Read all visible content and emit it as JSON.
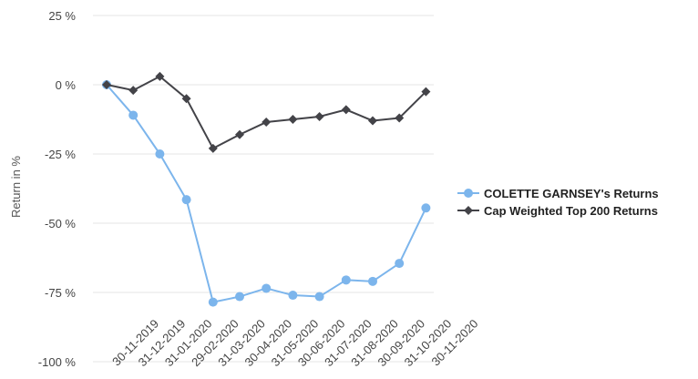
{
  "chart_data": {
    "type": "line",
    "ylabel": "Return in %",
    "xlabel": "",
    "title": "",
    "ylim": [
      -100,
      25
    ],
    "yticks": [
      25,
      0,
      -25,
      -50,
      -75,
      -100
    ],
    "ytick_labels": [
      "25 %",
      "0 %",
      "-25 %",
      "-50 %",
      "-75 %",
      "-100 %"
    ],
    "categories": [
      "30-11-2019",
      "31-12-2019",
      "31-01-2020",
      "29-02-2020",
      "31-03-2020",
      "30-04-2020",
      "31-05-2020",
      "30-06-2020",
      "31-07-2020",
      "31-08-2020",
      "30-09-2020",
      "31-10-2020",
      "30-11-2020"
    ],
    "grid": "horizontal",
    "legend_position": "right",
    "series": [
      {
        "name": "COLETTE GARNSEY's Returns",
        "color": "#7cb5ec",
        "marker": "circle",
        "values": [
          0,
          -11,
          -25,
          -41.5,
          -78.5,
          -76.5,
          -73.5,
          -76,
          -76.5,
          -70.5,
          -71,
          -64.5,
          -44.5
        ]
      },
      {
        "name": "Cap Weighted Top 200 Returns",
        "color": "#434348",
        "marker": "diamond",
        "values": [
          0,
          -2,
          3,
          -5,
          -23,
          -18,
          -13.5,
          -12.5,
          -11.5,
          -9,
          -13,
          -12,
          -2.5
        ]
      }
    ]
  }
}
